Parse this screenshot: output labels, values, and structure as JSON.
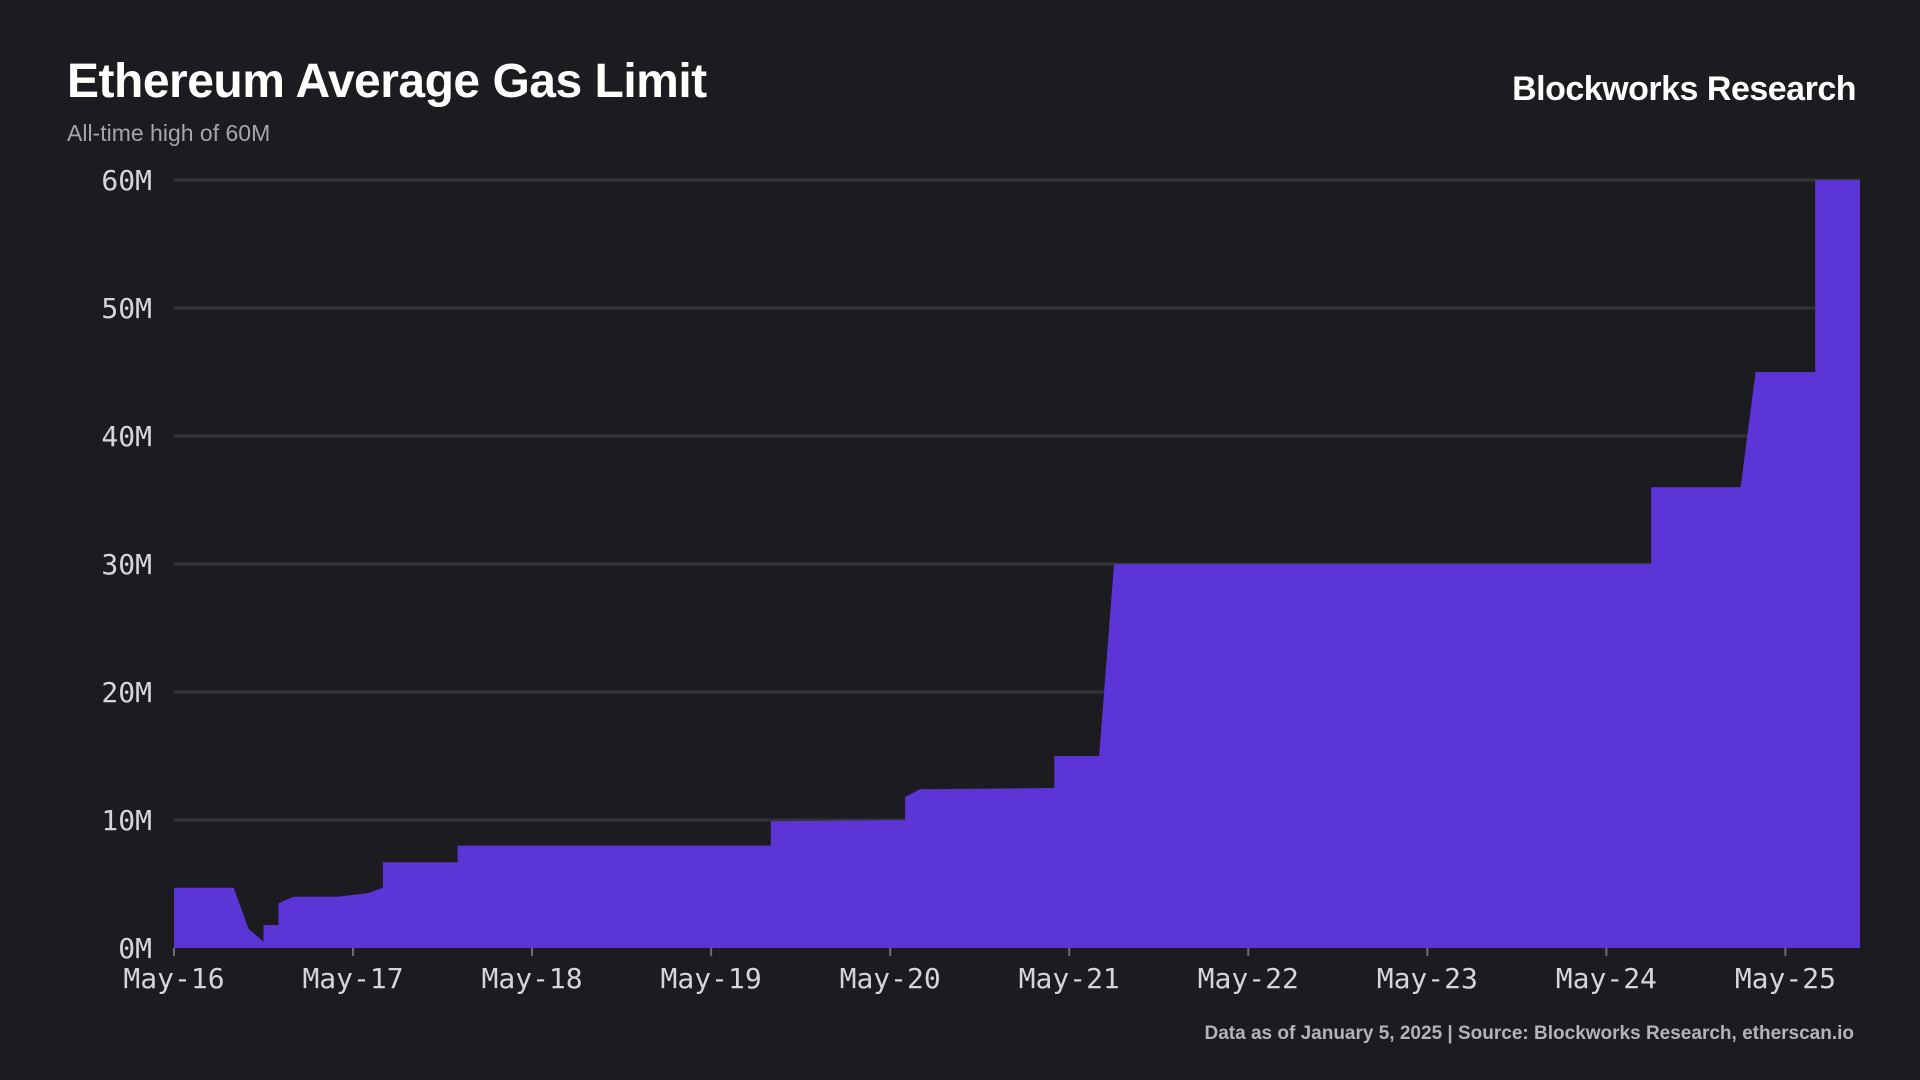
{
  "header": {
    "title": "Ethereum Average Gas Limit",
    "subtitle": "All-time high of 60M",
    "brand": "Blockworks Research"
  },
  "footer": {
    "source": "Data as of January 5, 2025 | Source: Blockworks Research, etherscan.io"
  },
  "colors": {
    "background": "#1c1b20",
    "area": "#5b35d5",
    "grid": "#34333a"
  },
  "chart_data": {
    "type": "area",
    "title": "Ethereum Average Gas Limit",
    "subtitle": "All-time high of 60M",
    "xlabel": "",
    "ylabel": "",
    "ylim": [
      0,
      60000000
    ],
    "xlim": [
      "2016-05",
      "2025-10"
    ],
    "grid": true,
    "legend": "none",
    "y_ticks": [
      {
        "value": 0,
        "label": "0M"
      },
      {
        "value": 10000000,
        "label": "10M"
      },
      {
        "value": 20000000,
        "label": "20M"
      },
      {
        "value": 30000000,
        "label": "30M"
      },
      {
        "value": 40000000,
        "label": "40M"
      },
      {
        "value": 50000000,
        "label": "50M"
      },
      {
        "value": 60000000,
        "label": "60M"
      }
    ],
    "x_ticks": [
      {
        "value": "2016-05",
        "label": "May-16"
      },
      {
        "value": "2017-05",
        "label": "May-17"
      },
      {
        "value": "2018-05",
        "label": "May-18"
      },
      {
        "value": "2019-05",
        "label": "May-19"
      },
      {
        "value": "2020-05",
        "label": "May-20"
      },
      {
        "value": "2021-05",
        "label": "May-21"
      },
      {
        "value": "2022-05",
        "label": "May-22"
      },
      {
        "value": "2023-05",
        "label": "May-23"
      },
      {
        "value": "2024-05",
        "label": "May-24"
      },
      {
        "value": "2025-05",
        "label": "May-25"
      }
    ],
    "series": [
      {
        "values": [
          {
            "x": "2016-05",
            "y": 4700000
          },
          {
            "x": "2016-07",
            "y": 4700000
          },
          {
            "x": "2016-07",
            "y": 3700000
          },
          {
            "x": "2016-07",
            "y": 4700000
          },
          {
            "x": "2016-09",
            "y": 4700000
          },
          {
            "x": "2016-10",
            "y": 1500000
          },
          {
            "x": "2016-11",
            "y": 500000
          },
          {
            "x": "2016-11",
            "y": 1800000
          },
          {
            "x": "2016-12",
            "y": 1800000
          },
          {
            "x": "2016-12",
            "y": 3500000
          },
          {
            "x": "2017-01",
            "y": 4000000
          },
          {
            "x": "2017-04",
            "y": 4000000
          },
          {
            "x": "2017-06",
            "y": 4300000
          },
          {
            "x": "2017-07",
            "y": 4700000
          },
          {
            "x": "2017-07",
            "y": 6700000
          },
          {
            "x": "2017-12",
            "y": 6700000
          },
          {
            "x": "2017-12",
            "y": 8000000
          },
          {
            "x": "2019-09",
            "y": 8000000
          },
          {
            "x": "2019-09",
            "y": 9900000
          },
          {
            "x": "2020-06",
            "y": 10000000
          },
          {
            "x": "2020-06",
            "y": 11800000
          },
          {
            "x": "2020-07",
            "y": 12400000
          },
          {
            "x": "2021-04",
            "y": 12500000
          },
          {
            "x": "2021-04",
            "y": 15000000
          },
          {
            "x": "2021-07",
            "y": 15000000
          },
          {
            "x": "2021-08",
            "y": 30000000
          },
          {
            "x": "2024-08",
            "y": 30000000
          },
          {
            "x": "2024-08",
            "y": 36000000
          },
          {
            "x": "2025-02",
            "y": 36000000
          },
          {
            "x": "2025-03",
            "y": 45000000
          },
          {
            "x": "2025-07",
            "y": 45000000
          },
          {
            "x": "2025-07",
            "y": 60000000
          },
          {
            "x": "2025-10",
            "y": 60000000
          }
        ]
      }
    ]
  }
}
